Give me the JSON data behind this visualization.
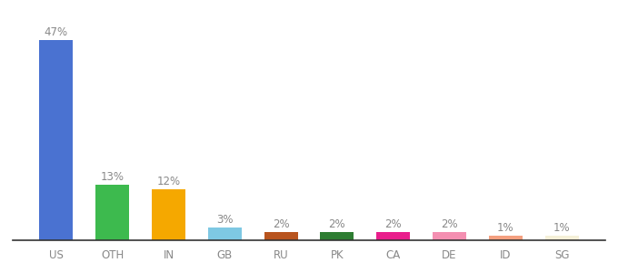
{
  "categories": [
    "US",
    "OTH",
    "IN",
    "GB",
    "RU",
    "PK",
    "CA",
    "DE",
    "ID",
    "SG"
  ],
  "values": [
    47,
    13,
    12,
    3,
    2,
    2,
    2,
    2,
    1,
    1
  ],
  "labels": [
    "47%",
    "13%",
    "12%",
    "3%",
    "2%",
    "2%",
    "2%",
    "2%",
    "1%",
    "1%"
  ],
  "bar_colors": [
    "#4a72d1",
    "#3dba4e",
    "#f5a800",
    "#7ec8e3",
    "#b8541e",
    "#2e7d32",
    "#e91e8c",
    "#f48fb1",
    "#f4a080",
    "#f5f0d8"
  ],
  "ylim": [
    0,
    52
  ],
  "background_color": "#ffffff",
  "label_color": "#888888",
  "label_fontsize": 8.5,
  "tick_fontsize": 8.5,
  "tick_color": "#888888"
}
